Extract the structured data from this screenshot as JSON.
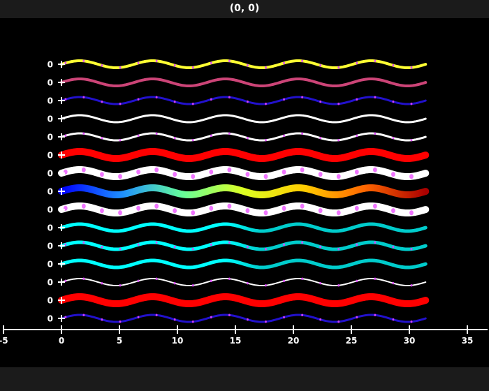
{
  "window": {
    "title": "(0, 0)"
  },
  "chart_data": {
    "type": "line",
    "x_domain": [
      0,
      31.4
    ],
    "xlim": [
      -5,
      37
    ],
    "x_ticks": [
      -5,
      0,
      5,
      10,
      15,
      20,
      25,
      30,
      35
    ],
    "x_tick_labels": [
      "-5",
      "0",
      "5",
      "10",
      "15",
      "20",
      "25",
      "30",
      "35"
    ],
    "y_tick_label": "0",
    "grid": false,
    "legend": "none",
    "series": [
      {
        "values_formula": "sin(x)",
        "color": "#ffff33",
        "width": 4,
        "dots": "#dd44ff"
      },
      {
        "values_formula": "sin(x)",
        "color": "#cc4477",
        "width": 4,
        "dots": null
      },
      {
        "values_formula": "sin(x)",
        "color": "#2211cc",
        "width": 3,
        "dots": "#dd44ff"
      },
      {
        "values_formula": "sin(x)",
        "color": "#ffffff",
        "width": 3,
        "dots": null
      },
      {
        "values_formula": "sin(x)",
        "color": "#ffffff",
        "width": 3,
        "dots": "#dd44ff"
      },
      {
        "values_formula": "sin(x)",
        "color": "#ff0000",
        "width": 10,
        "dots": null
      },
      {
        "values_formula": "sin(x)",
        "color": "#ffffff",
        "width": 10,
        "dots": "#ee66ff"
      },
      {
        "values_formula": "sin(x)",
        "gradient": [
          "#0000ff",
          "#1e90ff",
          "#66ff99",
          "#ddff22",
          "#ffcc00",
          "#ff6600",
          "#aa0000"
        ],
        "width": 10,
        "dots": null
      },
      {
        "values_formula": "sin(x)",
        "color": "#ffffff",
        "width": 10,
        "dots": "#ee66ff"
      },
      {
        "values_formula": "sin(x)",
        "color": "#00ffff",
        "color2": "#00cccc",
        "width": 5,
        "dots": null
      },
      {
        "values_formula": "sin(x)",
        "color": "#00ffff",
        "color2": "#00cccc",
        "width": 5,
        "dots": "#dd44ff"
      },
      {
        "values_formula": "sin(x)",
        "color": "#00ffff",
        "color2": "#00cccc",
        "width": 5,
        "dots": null
      },
      {
        "values_formula": "sin(x)",
        "color": "#ffffff",
        "width": 2,
        "dots": "#dd44ff"
      },
      {
        "values_formula": "sin(x)",
        "color": "#ff0000",
        "width": 10,
        "dots": null
      },
      {
        "values_formula": "sin(x)",
        "color": "#2211cc",
        "width": 3,
        "dots": "#dd44ff"
      }
    ]
  }
}
